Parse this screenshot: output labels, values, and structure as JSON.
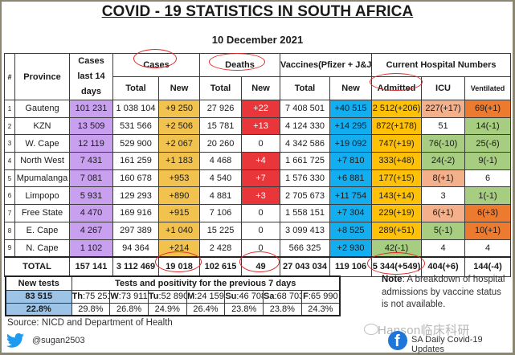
{
  "title": "COVID - 19 STATISTICS IN SOUTH AFRICA",
  "date": "10 December 2021",
  "headers": {
    "index": "#",
    "province": "Province",
    "cases_last_14": "Cases last 14 days",
    "cases": "Cases",
    "deaths": "Deaths",
    "vaccines": "Vaccines(Pfizer + J&J)",
    "hospital": "Current Hospital Numbers",
    "total": "Total",
    "new": "New",
    "admitted": "Admitted",
    "icu": "ICU",
    "ventilated": "Ventilated"
  },
  "rows": [
    {
      "idx": "1",
      "province": "Gauteng",
      "last14": "101 231",
      "cases_total": "1 038 104",
      "cases_new": "+9 250",
      "deaths_total": "27 926",
      "deaths_new": "+22",
      "vacc_total": "7 408 501",
      "vacc_new": "+40 515",
      "admitted": "2 512(+206)",
      "icu": "227(+17)",
      "ventilated": "69(+1)"
    },
    {
      "idx": "2",
      "province": "KZN",
      "last14": "13 509",
      "cases_total": "531 566",
      "cases_new": "+2 506",
      "deaths_total": "15 781",
      "deaths_new": "+13",
      "vacc_total": "4 124 330",
      "vacc_new": "+14 295",
      "admitted": "872(+178)",
      "icu": "51",
      "ventilated": "14(-1)"
    },
    {
      "idx": "3",
      "province": "W. Cape",
      "last14": "12 119",
      "cases_total": "529 900",
      "cases_new": "+2 067",
      "deaths_total": "20 260",
      "deaths_new": "0",
      "vacc_total": "4 342 586",
      "vacc_new": "+19 092",
      "admitted": "747(+19)",
      "icu": "76(-10)",
      "ventilated": "25(-6)"
    },
    {
      "idx": "4",
      "province": "North West",
      "last14": "7 431",
      "cases_total": "161 259",
      "cases_new": "+1 183",
      "deaths_total": "4 468",
      "deaths_new": "+4",
      "vacc_total": "1 661 725",
      "vacc_new": "+7 810",
      "admitted": "333(+48)",
      "icu": "24(-2)",
      "ventilated": "9(-1)"
    },
    {
      "idx": "5",
      "province": "Mpumalanga",
      "last14": "7 081",
      "cases_total": "160 678",
      "cases_new": "+953",
      "deaths_total": "4 540",
      "deaths_new": "+7",
      "vacc_total": "1 576 330",
      "vacc_new": "+6 881",
      "admitted": "177(+15)",
      "icu": "8(+1)",
      "ventilated": "6"
    },
    {
      "idx": "6",
      "province": "Limpopo",
      "last14": "5 931",
      "cases_total": "129 293",
      "cases_new": "+890",
      "deaths_total": "4 881",
      "deaths_new": "+3",
      "vacc_total": "2 705 673",
      "vacc_new": "+11 754",
      "admitted": "143(+14)",
      "icu": "3",
      "ventilated": "1(-1)"
    },
    {
      "idx": "7",
      "province": "Free State",
      "last14": "4 470",
      "cases_total": "169 916",
      "cases_new": "+915",
      "deaths_total": "7 106",
      "deaths_new": "0",
      "vacc_total": "1 558 151",
      "vacc_new": "+7 304",
      "admitted": "229(+19)",
      "icu": "6(+1)",
      "ventilated": "6(+3)"
    },
    {
      "idx": "8",
      "province": "E. Cape",
      "last14": "4 267",
      "cases_total": "297 389",
      "cases_new": "+1 040",
      "deaths_total": "15 225",
      "deaths_new": "0",
      "vacc_total": "3 099 413",
      "vacc_new": "+8 525",
      "admitted": "289(+51)",
      "icu": "5(-1)",
      "ventilated": "10(+1)"
    },
    {
      "idx": "9",
      "province": "N. Cape",
      "last14": "1 102",
      "cases_total": "94 364",
      "cases_new": "+214",
      "deaths_total": "2 428",
      "deaths_new": "0",
      "vacc_total": "566 325",
      "vacc_new": "+2 930",
      "admitted": "42(-1)",
      "icu": "4",
      "ventilated": "4"
    }
  ],
  "total": {
    "label": "TOTAL",
    "last14": "157 141",
    "cases_total": "3 112 469",
    "cases_new": "19 018",
    "deaths_total": "102 615",
    "deaths_new": "49",
    "vacc_total": "27 043 034",
    "vacc_new": "119 106",
    "admitted": "5 344(+549)",
    "icu": "404(+6)",
    "ventilated": "144(-4)"
  },
  "tests": {
    "new_tests_label": "New tests",
    "new_tests_value": "83 515",
    "new_positivity": "22.8%",
    "previous_label": "Tests and positivity for the previous 7 days",
    "days": [
      {
        "day": "Th",
        "count": "75 251",
        "positivity": "29.8%"
      },
      {
        "day": "W",
        "count": "73 911",
        "positivity": "26.8%"
      },
      {
        "day": "Tu",
        "count": "52 890",
        "positivity": "24.9%"
      },
      {
        "day": "M",
        "count": "24 159",
        "positivity": "26.4%"
      },
      {
        "day": "Su",
        "count": "46 708",
        "positivity": "23.8%"
      },
      {
        "day": "Sa",
        "count": "68 703",
        "positivity": "23.8%"
      },
      {
        "day": "F",
        "count": "65 990",
        "positivity": "24.3%"
      }
    ]
  },
  "note": {
    "label": "Note",
    "text": ": A breakdown of hospital admissions by vaccine status is not available."
  },
  "source": "Source: NICD and Department of Health",
  "twitter_handle": "@sugan2503",
  "facebook_page": "SA Daily Covid-19 Updates",
  "watermark": "Hanson临床科研",
  "colors": {
    "cases_last14": "#c9a0f0",
    "cases_new": "#f2c24e",
    "deaths_new": "#e8363a",
    "vaccines_new": "#12aef0",
    "admitted": "#ffc107",
    "increase_light": "#f3b08a",
    "increase_strong": "#ec7b30",
    "decrease": "#a6cd80",
    "new_tests": "#9dc3e6",
    "highlight_circle": "#e02828"
  }
}
